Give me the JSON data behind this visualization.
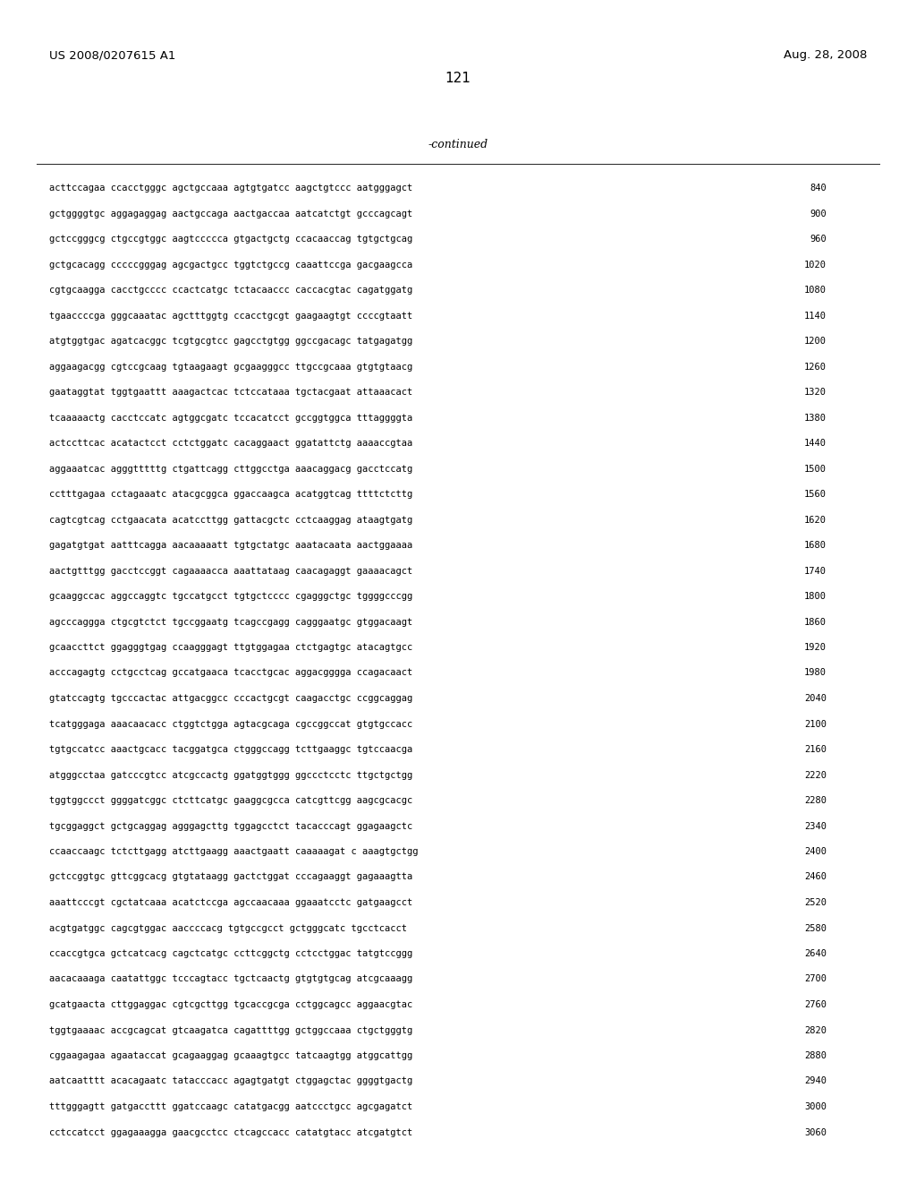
{
  "header_left": "US 2008/0207615 A1",
  "header_right": "Aug. 28, 2008",
  "page_number": "121",
  "continued_label": "-continued",
  "background_color": "#ffffff",
  "text_color": "#000000",
  "sequences": [
    {
      "seq": "acttccagaa ccacctgggc agctgccaaa agtgtgatcc aagctgtccc aatgggagct",
      "num": "840"
    },
    {
      "seq": "gctggggtgc aggagaggag aactgccaga aactgaccaa aatcatctgt gcccagcagt",
      "num": "900"
    },
    {
      "seq": "gctccgggcg ctgccgtggc aagtccccca gtgactgctg ccacaaccag tgtgctgcag",
      "num": "960"
    },
    {
      "seq": "gctgcacagg cccccgggag agcgactgcc tggtctgccg caaattccga gacgaagcca",
      "num": "1020"
    },
    {
      "seq": "cgtgcaagga cacctgcccc ccactcatgc tctacaaccc caccacgtac cagatggatg",
      "num": "1080"
    },
    {
      "seq": "tgaaccccga gggcaaatac agctttggtg ccacctgcgt gaagaagtgt ccccgtaatt",
      "num": "1140"
    },
    {
      "seq": "atgtggtgac agatcacggc tcgtgcgtcc gagcctgtgg ggccgacagc tatgagatgg",
      "num": "1200"
    },
    {
      "seq": "aggaagacgg cgtccgcaag tgtaagaagt gcgaagggcc ttgccgcaaa gtgtgtaacg",
      "num": "1260"
    },
    {
      "seq": "gaataggtat tggtgaattt aaagactcac tctccataaa tgctacgaat attaaacact",
      "num": "1320"
    },
    {
      "seq": "tcaaaaactg cacctccatc agtggcgatc tccacatcct gccggtggca tttaggggta",
      "num": "1380"
    },
    {
      "seq": "actccttcac acatactcct cctctggatc cacaggaact ggatattctg aaaaccgtaa",
      "num": "1440"
    },
    {
      "seq": "aggaaatcac agggtttttg ctgattcagg cttggcctga aaacaggacg gacctccatg",
      "num": "1500"
    },
    {
      "seq": "cctttgagaa cctagaaatc atacgcggca ggaccaagca acatggtcag ttttctcttg",
      "num": "1560"
    },
    {
      "seq": "cagtcgtcag cctgaacata acatccttgg gattacgctc cctcaaggag ataagtgatg",
      "num": "1620"
    },
    {
      "seq": "gagatgtgat aatttcagga aacaaaaatt tgtgctatgc aaatacaata aactggaaaa",
      "num": "1680"
    },
    {
      "seq": "aactgtttgg gacctccggt cagaaaacca aaattataag caacagaggt gaaaacagct",
      "num": "1740"
    },
    {
      "seq": "gcaaggccac aggccaggtc tgccatgcct tgtgctcccc cgagggctgc tggggcccgg",
      "num": "1800"
    },
    {
      "seq": "agcccaggga ctgcgtctct tgccggaatg tcagccgagg cagggaatgc gtggacaagt",
      "num": "1860"
    },
    {
      "seq": "gcaaccttct ggagggtgag ccaagggagt ttgtggagaa ctctgagtgc atacagtgcc",
      "num": "1920"
    },
    {
      "seq": "acccagagtg cctgcctcag gccatgaaca tcacctgcac aggacgggga ccagacaact",
      "num": "1980"
    },
    {
      "seq": "gtatccagtg tgcccactac attgacggcc cccactgcgt caagacctgc ccggcaggag",
      "num": "2040"
    },
    {
      "seq": "tcatgggaga aaacaacacc ctggtctgga agtacgcaga cgccggccat gtgtgccacc",
      "num": "2100"
    },
    {
      "seq": "tgtgccatcc aaactgcacc tacggatgca ctgggccagg tcttgaaggc tgtccaacga",
      "num": "2160"
    },
    {
      "seq": "atgggcctaa gatcccgtcc atcgccactg ggatggtggg ggccctcctc ttgctgctgg",
      "num": "2220"
    },
    {
      "seq": "tggtggccct ggggatcggc ctcttcatgc gaaggcgcca catcgttcgg aagcgcacgc",
      "num": "2280"
    },
    {
      "seq": "tgcggaggct gctgcaggag agggagcttg tggagcctct tacacccagt ggagaagctc",
      "num": "2340"
    },
    {
      "seq": "ccaaccaagc tctcttgagg atcttgaagg aaactgaatt caaaaagat c aaagtgctgg",
      "num": "2400"
    },
    {
      "seq": "gctccggtgc gttcggcacg gtgtataagg gactctggat cccagaaggt gagaaagtta",
      "num": "2460"
    },
    {
      "seq": "aaattcccgt cgctatcaaa acatctccga agccaacaaa ggaaatcctc gatgaagcct",
      "num": "2520"
    },
    {
      "seq": "acgtgatggc cagcgtggac aaccccacg tgtgccgcct gctgggcatc tgcctcacct",
      "num": "2580"
    },
    {
      "seq": "ccaccgtgca gctcatcacg cagctcatgc ccttcggctg cctcctggac tatgtccggg",
      "num": "2640"
    },
    {
      "seq": "aacacaaaga caatattggc tcccagtacc tgctcaactg gtgtgtgcag atcgcaaagg",
      "num": "2700"
    },
    {
      "seq": "gcatgaacta cttggaggac cgtcgcttgg tgcaccgcga cctggcagcc aggaacgtac",
      "num": "2760"
    },
    {
      "seq": "tggtgaaaac accgcagcat gtcaagatca cagattttgg gctggccaaa ctgctgggtg",
      "num": "2820"
    },
    {
      "seq": "cggaagagaa agaataccat gcagaaggag gcaaagtgcc tatcaagtgg atggcattgg",
      "num": "2880"
    },
    {
      "seq": "aatcaatttt acacagaatc tatacccacc agagtgatgt ctggagctac ggggtgactg",
      "num": "2940"
    },
    {
      "seq": "tttgggagtt gatgaccttt ggatccaagc catatgacgg aatccctgcc agcgagatct",
      "num": "3000"
    },
    {
      "seq": "cctccatcct ggagaaagga gaacgcctcc ctcagccacc catatgtacc atcgatgtct",
      "num": "3060"
    }
  ],
  "header_fontsize": 9.5,
  "page_num_fontsize": 11,
  "continued_fontsize": 9,
  "seq_fontsize": 7.5,
  "num_fontsize": 7.5
}
